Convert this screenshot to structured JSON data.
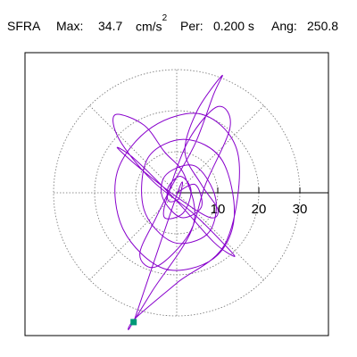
{
  "header": {
    "station": "SFRA",
    "max_label": "Max:",
    "max_value": "34.7",
    "max_unit": "cm/s",
    "max_unit_exp": "2",
    "period_label": "Per:",
    "period_value": "0.200 s",
    "angle_label": "Ang:",
    "angle_value": "250.8"
  },
  "colors": {
    "trace": "#8800cc",
    "grid": "#707070",
    "axis": "#000000",
    "endpoint": "#009977",
    "frame": "#000000"
  },
  "chart_data": {
    "type": "polar-orbit",
    "radial_unit": "cm/s2",
    "radial_ticks": [
      10,
      20,
      30
    ],
    "rings": [
      10,
      20,
      30
    ],
    "radial_spokes_deg": [
      0,
      45,
      90,
      135,
      180,
      225,
      270,
      315
    ],
    "max_radius": 34.7,
    "max_angle_deg": 250.8,
    "orbit_points": [
      [
        0,
        0
      ],
      [
        4.5,
        2.0
      ],
      [
        6.0,
        -3.5
      ],
      [
        1.0,
        -6.0
      ],
      [
        -3.5,
        -1.0
      ],
      [
        -2.5,
        4.5
      ],
      [
        4.5,
        6.5
      ],
      [
        9.5,
        -1.5
      ],
      [
        7.5,
        -10.0
      ],
      [
        -1.0,
        -12.0
      ],
      [
        -8.0,
        -4.0
      ],
      [
        -7.0,
        8.5
      ],
      [
        2.0,
        13.0
      ],
      [
        11.0,
        8.0
      ],
      [
        14.0,
        -6.0
      ],
      [
        9.0,
        -16.0
      ],
      [
        -3.0,
        -18.5
      ],
      [
        -13.0,
        -9.0
      ],
      [
        -14.5,
        5.0
      ],
      [
        -6.0,
        16.0
      ],
      [
        6.5,
        19.0
      ],
      [
        15.0,
        9.0
      ],
      [
        12.0,
        -12.0
      ],
      [
        0.0,
        -22.0
      ],
      [
        -10.0,
        -30.5
      ],
      [
        -11.5,
        -33.0
      ],
      [
        -6.0,
        -24.0
      ],
      [
        4.0,
        -8.0
      ],
      [
        2.0,
        4.0
      ],
      [
        -3.0,
        10.0
      ],
      [
        -8.0,
        16.5
      ],
      [
        -15.0,
        19.0
      ],
      [
        -14.0,
        13.0
      ],
      [
        -6.0,
        3.0
      ],
      [
        4.0,
        -5.0
      ],
      [
        12.0,
        -13.0
      ],
      [
        14.0,
        -15.5
      ],
      [
        9.0,
        -12.0
      ],
      [
        0.0,
        -2.0
      ],
      [
        -10.0,
        8.0
      ],
      [
        -14.5,
        11.0
      ],
      [
        -9.0,
        6.0
      ],
      [
        0.0,
        -1.0
      ],
      [
        8.0,
        -6.0
      ],
      [
        10.0,
        -4.0
      ],
      [
        6.0,
        2.0
      ],
      [
        2.0,
        10.0
      ],
      [
        5.0,
        20.0
      ],
      [
        11.0,
        28.5
      ],
      [
        9.0,
        24.0
      ],
      [
        4.5,
        12.0
      ],
      [
        -1.0,
        2.0
      ],
      [
        -5.0,
        -6.0
      ],
      [
        -9.0,
        -15.0
      ],
      [
        -5.0,
        -18.0
      ],
      [
        3.0,
        -10.0
      ],
      [
        7.0,
        2.0
      ],
      [
        13.0,
        16.0
      ],
      [
        10.0,
        21.0
      ],
      [
        3.0,
        13.0
      ],
      [
        -2.0,
        0.0
      ],
      [
        -3.0,
        -6.0
      ],
      [
        1.5,
        -5.0
      ],
      [
        3.5,
        0.5
      ],
      [
        1.0,
        4.0
      ],
      [
        -2.0,
        1.5
      ],
      [
        -2.0,
        -2.0
      ],
      [
        0.5,
        -1.5
      ],
      [
        0.5,
        0.8
      ],
      [
        -10.5,
        -31.5
      ]
    ]
  }
}
